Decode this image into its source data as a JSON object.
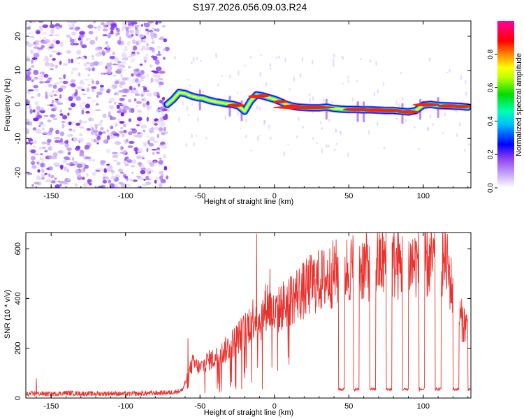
{
  "title": "S197.2026.056.09.03.R24",
  "colors": {
    "line": "#e8302c",
    "scatter": "#8a3cf0",
    "colorbar": [
      "#ffffff",
      "#8a3cf0",
      "#0000ff",
      "#00e5ff",
      "#00dd00",
      "#ffff00",
      "#ff8800",
      "#ff0000",
      "#ff00a0"
    ]
  },
  "chart_data": [
    {
      "type": "heatmap",
      "name": "spectrogram",
      "xlabel": "Height of straight line (km)",
      "ylabel": "Frequency (Hz)",
      "xlim": [
        -167,
        132
      ],
      "ylim": [
        -24.5,
        24.5
      ],
      "xticks": [
        -150,
        -100,
        -50,
        0,
        50,
        100
      ],
      "yticks": [
        -20,
        -10,
        0,
        10,
        20
      ],
      "noise_region_x": [
        -167,
        -72
      ],
      "ridge": {
        "x": [
          -72,
          -68,
          -64,
          -60,
          -56,
          -52,
          -48,
          -44,
          -40,
          -36,
          -32,
          -28,
          -24,
          -20,
          -16,
          -12,
          -8,
          -4,
          0,
          4,
          8,
          12,
          16,
          20,
          25,
          30,
          35,
          40,
          45,
          50,
          55,
          60,
          65,
          70,
          75,
          80,
          85,
          90,
          95,
          100,
          105,
          110,
          115,
          120,
          125,
          130
        ],
        "y": [
          0,
          1.5,
          3.5,
          3.2,
          2.5,
          2.0,
          1.8,
          1.2,
          0.8,
          0.5,
          0.2,
          0,
          -0.5,
          -2,
          1,
          2.8,
          2.5,
          2.0,
          1.5,
          0.8,
          0,
          -0.5,
          -0.8,
          -0.9,
          -1.0,
          -1.0,
          -0.8,
          -1.2,
          -1.4,
          -1.5,
          -1.5,
          -1.6,
          -1.6,
          -1.7,
          -1.8,
          -1.8,
          -2.0,
          -2.2,
          -1.8,
          -0.2,
          0,
          -0.3,
          -0.4,
          -0.5,
          -0.6,
          -0.8
        ]
      },
      "colorbar": {
        "label": "Normalized spectral amplitude",
        "range": [
          0,
          1
        ],
        "ticks": [
          "0.0",
          "0.2",
          "0.4",
          "0.6",
          "0.8"
        ]
      }
    },
    {
      "type": "line",
      "name": "snr",
      "xlabel": "Height of straight line (km)",
      "ylabel": "SNR (10 * v/v)",
      "xlim": [
        -167,
        132
      ],
      "ylim": [
        0,
        665
      ],
      "xticks": [
        -150,
        -100,
        -50,
        0,
        50,
        100
      ],
      "yticks": [
        0,
        200,
        400,
        600
      ],
      "series": [
        {
          "name": "SNR",
          "x": [
            -167,
            -160,
            -150,
            -140,
            -130,
            -120,
            -110,
            -100,
            -90,
            -80,
            -70,
            -62,
            -58,
            -55,
            -50,
            -45,
            -40,
            -35,
            -30,
            -25,
            -20,
            -15,
            -12,
            -10,
            -5,
            0,
            5,
            10,
            15,
            20,
            25,
            30,
            35,
            40,
            45,
            50,
            55,
            60,
            65,
            70,
            75,
            80,
            85,
            90,
            95,
            100,
            105,
            110,
            115,
            120,
            125,
            130
          ],
          "y": [
            15,
            18,
            16,
            20,
            18,
            17,
            19,
            16,
            18,
            20,
            22,
            30,
            90,
            140,
            120,
            150,
            160,
            180,
            210,
            240,
            270,
            320,
            340,
            300,
            380,
            330,
            370,
            390,
            420,
            430,
            460,
            470,
            480,
            500,
            510,
            520,
            525,
            530,
            535,
            540,
            545,
            540,
            535,
            540,
            545,
            540,
            545,
            550,
            560,
            420,
            320,
            280
          ],
          "spikes": [
            [
              -160,
              80
            ],
            [
              -58,
              240
            ],
            [
              -12,
              660
            ],
            [
              -3,
              520
            ]
          ],
          "dropouts": [
            [
              43,
              47
            ],
            [
              53,
              57
            ],
            [
              64,
              68
            ],
            [
              75,
              79
            ],
            [
              86,
              90
            ],
            [
              97,
              101
            ],
            [
              108,
              112
            ],
            [
              120,
              124
            ],
            [
              130,
              132
            ]
          ],
          "dropout_level": 35
        }
      ]
    }
  ]
}
